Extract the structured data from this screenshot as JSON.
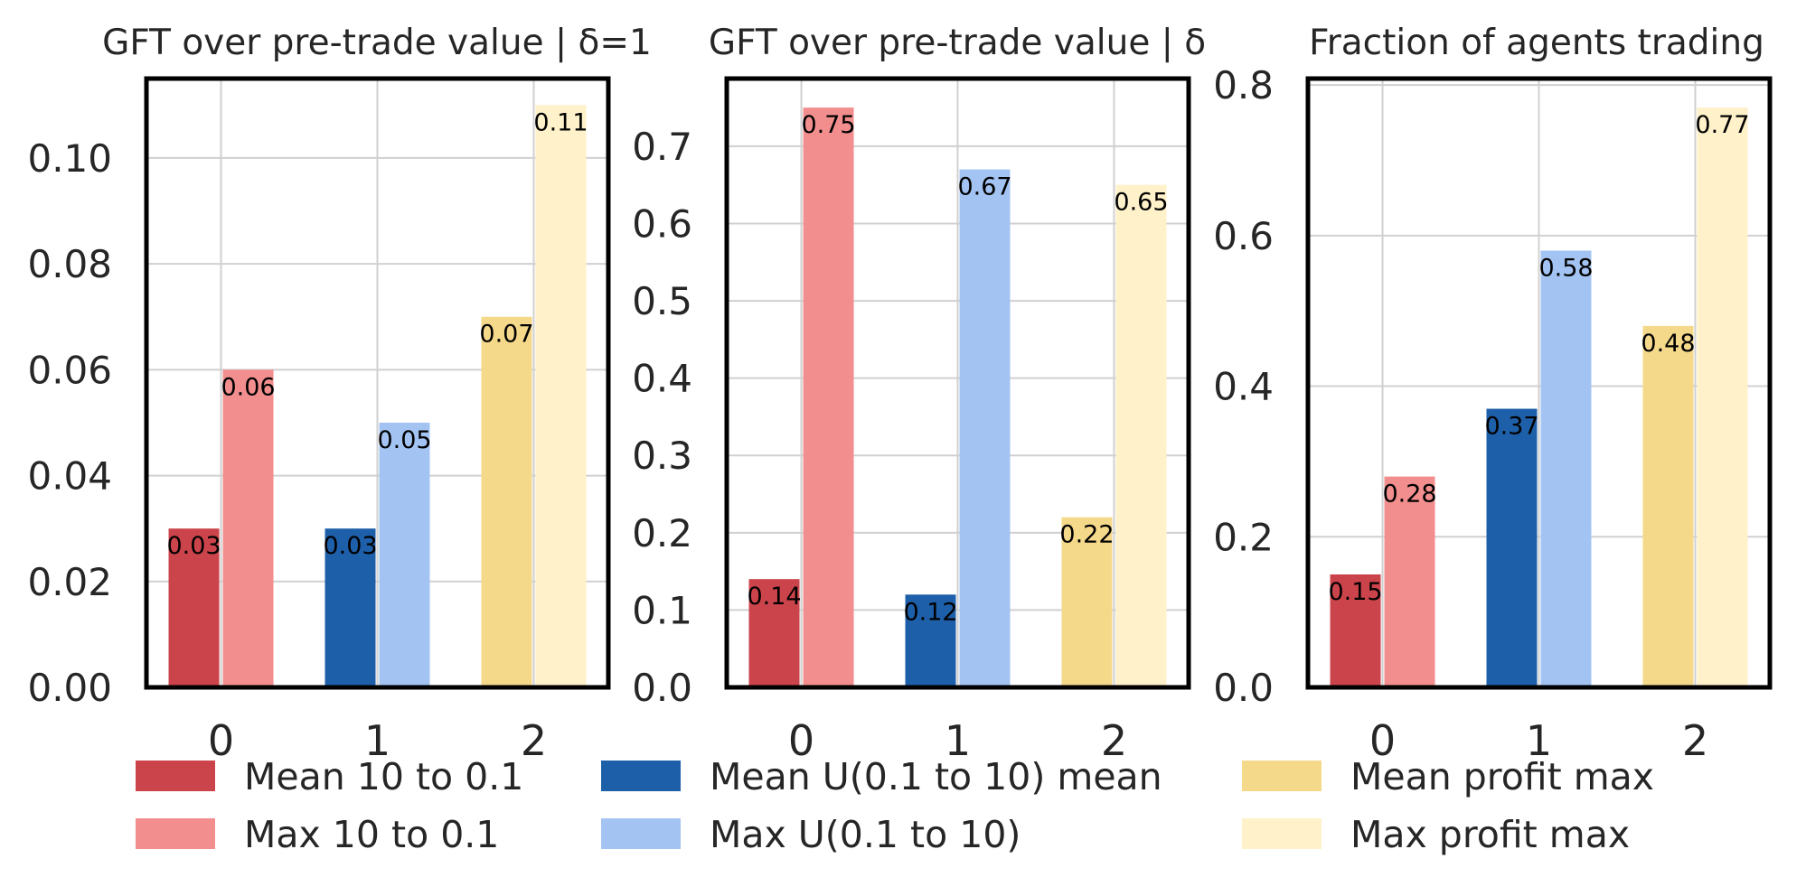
{
  "chart_data": [
    {
      "type": "bar",
      "title": "GFT over pre-trade value | δ=1",
      "categories": [
        "0",
        "1",
        "2"
      ],
      "ylim": [
        0,
        0.115
      ],
      "yticks": [
        0.0,
        0.02,
        0.04,
        0.06,
        0.08,
        0.1
      ],
      "ytick_labels": [
        "0.00",
        "0.02",
        "0.04",
        "0.06",
        "0.08",
        "0.10"
      ],
      "grid": true,
      "bars": [
        {
          "series": 0,
          "category": 0,
          "value": 0.03,
          "label": "0.03"
        },
        {
          "series": 1,
          "category": 0,
          "value": 0.06,
          "label": "0.06"
        },
        {
          "series": 2,
          "category": 1,
          "value": 0.03,
          "label": "0.03"
        },
        {
          "series": 3,
          "category": 1,
          "value": 0.05,
          "label": "0.05"
        },
        {
          "series": 4,
          "category": 2,
          "value": 0.07,
          "label": "0.07"
        },
        {
          "series": 5,
          "category": 2,
          "value": 0.11,
          "label": "0.11"
        }
      ]
    },
    {
      "type": "bar",
      "title": "GFT over pre-trade value | δ",
      "categories": [
        "0",
        "1",
        "2"
      ],
      "ylim": [
        0,
        0.7875
      ],
      "yticks": [
        0.0,
        0.1,
        0.2,
        0.3,
        0.4,
        0.5,
        0.6,
        0.7
      ],
      "ytick_labels": [
        "0.0",
        "0.1",
        "0.2",
        "0.3",
        "0.4",
        "0.5",
        "0.6",
        "0.7"
      ],
      "grid": true,
      "bars": [
        {
          "series": 0,
          "category": 0,
          "value": 0.14,
          "label": "0.14"
        },
        {
          "series": 1,
          "category": 0,
          "value": 0.75,
          "label": "0.75"
        },
        {
          "series": 2,
          "category": 1,
          "value": 0.12,
          "label": "0.12"
        },
        {
          "series": 3,
          "category": 1,
          "value": 0.67,
          "label": "0.67"
        },
        {
          "series": 4,
          "category": 2,
          "value": 0.22,
          "label": "0.22"
        },
        {
          "series": 5,
          "category": 2,
          "value": 0.65,
          "label": "0.65"
        }
      ]
    },
    {
      "type": "bar",
      "title": "Fraction of agents trading",
      "categories": [
        "0",
        "1",
        "2"
      ],
      "ylim": [
        0,
        0.8085
      ],
      "yticks": [
        0.0,
        0.2,
        0.4,
        0.6,
        0.8
      ],
      "ytick_labels": [
        "0.0",
        "0.2",
        "0.4",
        "0.6",
        "0.8"
      ],
      "grid": true,
      "bars": [
        {
          "series": 0,
          "category": 0,
          "value": 0.15,
          "label": "0.15"
        },
        {
          "series": 1,
          "category": 0,
          "value": 0.28,
          "label": "0.28"
        },
        {
          "series": 2,
          "category": 1,
          "value": 0.37,
          "label": "0.37"
        },
        {
          "series": 3,
          "category": 1,
          "value": 0.58,
          "label": "0.58"
        },
        {
          "series": 4,
          "category": 2,
          "value": 0.48,
          "label": "0.48"
        },
        {
          "series": 5,
          "category": 2,
          "value": 0.77,
          "label": "0.77"
        }
      ]
    }
  ],
  "series": [
    {
      "name": "Mean 10 to 0.1",
      "color": "#cc444b"
    },
    {
      "name": "Max 10 to 0.1",
      "color": "#f28e8e"
    },
    {
      "name": "Mean U(0.1 to 10) mean",
      "color": "#1e5fa9"
    },
    {
      "name": "Max U(0.1 to 10)",
      "color": "#a3c4f3"
    },
    {
      "name": "Mean profit max",
      "color": "#f5d98b"
    },
    {
      "name": "Max profit max",
      "color": "#fff1c9"
    }
  ],
  "legend": {
    "placement": "bottom",
    "columns": 3
  },
  "colors": {
    "grid": "#d0d0d0",
    "frame": "#000000",
    "text": "#262626",
    "background": "#ffffff"
  }
}
